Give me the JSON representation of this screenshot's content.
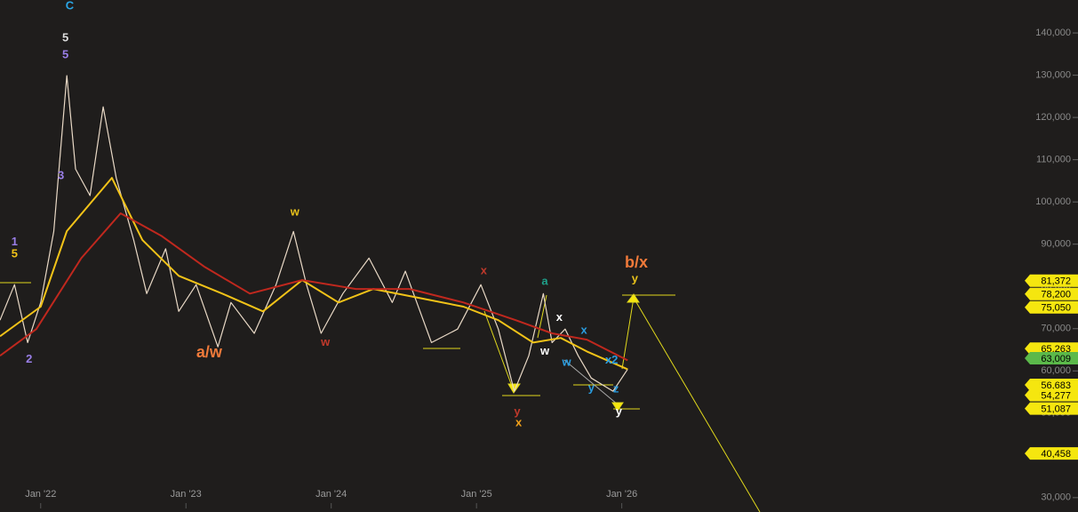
{
  "chart_data": {
    "type": "line",
    "xlim": [
      2021.72,
      2028.7
    ],
    "ylim": [
      26600,
      147800
    ],
    "xticks": [
      {
        "value": 2022,
        "label": "Jan '22"
      },
      {
        "value": 2023,
        "label": "Jan '23"
      },
      {
        "value": 2024,
        "label": "Jan '24"
      },
      {
        "value": 2025,
        "label": "Jan '25"
      },
      {
        "value": 2026,
        "label": "Jan '26"
      }
    ],
    "yticks": [
      {
        "value": 30000,
        "label": "30,000"
      },
      {
        "value": 40000,
        "label": "40,000"
      },
      {
        "value": 50000,
        "label": "50,000"
      },
      {
        "value": 60000,
        "label": "60,000"
      },
      {
        "value": 70000,
        "label": "70,000"
      },
      {
        "value": 80000,
        "label": "80,000"
      },
      {
        "value": 90000,
        "label": "90,000"
      },
      {
        "value": 100000,
        "label": "100,000"
      },
      {
        "value": 110000,
        "label": "110,000"
      },
      {
        "value": 120000,
        "label": "120,000"
      },
      {
        "value": 130000,
        "label": "130,000"
      },
      {
        "value": 140000,
        "label": "140,000"
      }
    ],
    "series": [
      {
        "color": "#e9d9c6",
        "x": [
          2021.72,
          2021.82,
          2021.91,
          2022.0,
          2022.09,
          2022.18,
          2022.24,
          2022.34,
          2022.43,
          2022.52,
          2022.64,
          2022.73,
          2022.86,
          2022.95,
          2023.07,
          2023.22,
          2023.31,
          2023.47,
          2023.62,
          2023.74,
          2023.83,
          2023.93,
          2024.08,
          2024.26,
          2024.42,
          2024.51,
          2024.69,
          2024.87,
          2025.03,
          2025.15,
          2025.26,
          2025.36,
          2025.46,
          2025.52,
          2025.61,
          2025.7,
          2025.79,
          2025.94,
          2026.04
        ],
        "values": [
          72000,
          80400,
          66700,
          76200,
          93000,
          129900,
          107800,
          101500,
          122500,
          105700,
          91000,
          78300,
          88900,
          74100,
          80400,
          65700,
          76200,
          68900,
          80400,
          93000,
          80400,
          68900,
          78300,
          86700,
          76200,
          83600,
          66700,
          69900,
          80400,
          69900,
          55200,
          63600,
          78300,
          66700,
          69900,
          63600,
          58300,
          55200,
          60400
        ]
      },
      {
        "color": "#f2c318",
        "x": [
          2021.72,
          2022.0,
          2022.18,
          2022.49,
          2022.7,
          2022.95,
          2023.25,
          2023.53,
          2023.8,
          2024.05,
          2024.29,
          2024.6,
          2024.91,
          2025.15,
          2025.39,
          2025.58,
          2025.76,
          2026.04
        ],
        "values": [
          68200,
          75200,
          93100,
          105700,
          91000,
          82500,
          78300,
          74100,
          81500,
          76200,
          79400,
          77300,
          75200,
          72000,
          66700,
          67800,
          64600,
          60400
        ]
      },
      {
        "color": "#c0281e",
        "x": [
          2021.72,
          2021.97,
          2022.28,
          2022.55,
          2022.83,
          2023.13,
          2023.44,
          2023.8,
          2024.17,
          2024.54,
          2024.91,
          2025.27,
          2025.52,
          2025.76,
          2026.04
        ],
        "values": [
          63600,
          69900,
          86700,
          97300,
          92000,
          84600,
          78300,
          81500,
          79400,
          79400,
          76200,
          72000,
          68900,
          67400,
          62500
        ]
      }
    ],
    "price_tags": [
      {
        "value": 81372,
        "label": "81,372",
        "color": "#f5e60f"
      },
      {
        "value": 78200,
        "label": "78,200",
        "color": "#f5e60f"
      },
      {
        "value": 75050,
        "label": "75,050",
        "color": "#f5e60f"
      },
      {
        "value": 65263,
        "label": "65,263",
        "color": "#f5e60f"
      },
      {
        "value": 63009,
        "label": "63,009",
        "color": "#5bb94a"
      },
      {
        "value": 56683,
        "label": "56,683",
        "color": "#f5e60f"
      },
      {
        "value": 54277,
        "label": "54,277",
        "color": "#f5e60f"
      },
      {
        "value": 51087,
        "label": "51,087",
        "color": "#f5e60f"
      },
      {
        "value": 40458,
        "label": "40,458",
        "color": "#f5e60f"
      }
    ],
    "annotations": [
      {
        "text": "C",
        "x": 2022.2,
        "y": 146300,
        "color": "#2aa6e6"
      },
      {
        "text": "5",
        "x": 2022.17,
        "y": 138700,
        "color": "#dddddd"
      },
      {
        "text": "5",
        "x": 2022.17,
        "y": 134700,
        "color": "#9a7fe8"
      },
      {
        "text": "3",
        "x": 2022.14,
        "y": 106100,
        "color": "#9a7fe8"
      },
      {
        "text": "1",
        "x": 2021.82,
        "y": 90500,
        "color": "#9a7fe8"
      },
      {
        "text": "5",
        "x": 2021.82,
        "y": 87600,
        "color": "#f2c318"
      },
      {
        "text": "2",
        "x": 2021.92,
        "y": 62700,
        "color": "#9a7fe8"
      },
      {
        "text": "w",
        "x": 2023.75,
        "y": 97500,
        "color": "#e8c21a"
      },
      {
        "text": "a/w",
        "x": 2023.16,
        "y": 64200,
        "color": "#f07a3a",
        "emphasis": true
      },
      {
        "text": "w",
        "x": 2023.96,
        "y": 66700,
        "color": "#c0392b"
      },
      {
        "text": "x",
        "x": 2025.05,
        "y": 83600,
        "color": "#c0392b"
      },
      {
        "text": "a",
        "x": 2025.47,
        "y": 81100,
        "color": "#1fa08a"
      },
      {
        "text": "x",
        "x": 2025.57,
        "y": 72600,
        "color": "#ffffff"
      },
      {
        "text": "w",
        "x": 2025.47,
        "y": 64600,
        "color": "#ffffff"
      },
      {
        "text": "x",
        "x": 2025.74,
        "y": 69500,
        "color": "#2a9de0"
      },
      {
        "text": "w",
        "x": 2025.62,
        "y": 61900,
        "color": "#2a9de0"
      },
      {
        "text": "x2",
        "x": 2025.93,
        "y": 62500,
        "color": "#2a9de0"
      },
      {
        "text": "y",
        "x": 2025.79,
        "y": 55800,
        "color": "#2a9de0"
      },
      {
        "text": "z",
        "x": 2025.96,
        "y": 55600,
        "color": "#2a9de0"
      },
      {
        "text": "y",
        "x": 2025.98,
        "y": 50300,
        "color": "#ffffff"
      },
      {
        "text": "y",
        "x": 2025.28,
        "y": 50300,
        "color": "#c0392b"
      },
      {
        "text": "x",
        "x": 2025.29,
        "y": 47600,
        "color": "#f2a11a"
      },
      {
        "text": "b/x",
        "x": 2026.1,
        "y": 85500,
        "color": "#f07a3a",
        "emphasis": true
      },
      {
        "text": "y",
        "x": 2026.09,
        "y": 81700,
        "color": "#e8c21a"
      }
    ]
  }
}
